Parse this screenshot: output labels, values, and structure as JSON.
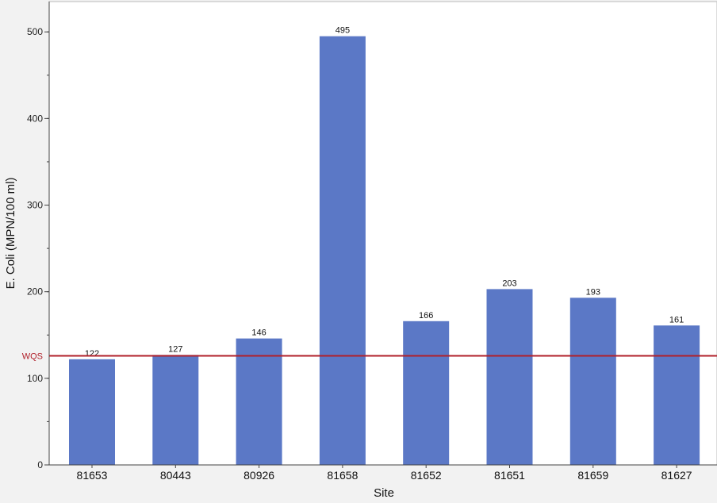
{
  "colors": {
    "bar": "#5B78C6",
    "reference_line": "#B0202A",
    "axis": "#444444",
    "plot_background": "#FFFFFF",
    "page_background": "#F2F2F2"
  },
  "chart_data": {
    "type": "bar",
    "title": "",
    "xlabel": "Site",
    "ylabel": "E. Coli (MPN/100 ml)",
    "categories": [
      "81653",
      "80443",
      "80926",
      "81658",
      "81652",
      "81651",
      "81659",
      "81627"
    ],
    "values": [
      122,
      127,
      146,
      495,
      166,
      203,
      193,
      161
    ],
    "data_labels": [
      "122",
      "127",
      "146",
      "495",
      "166",
      "203",
      "193",
      "161"
    ],
    "ylim": [
      0,
      535
    ],
    "y_ticks": [
      0,
      100,
      200,
      300,
      400,
      500
    ],
    "y_tick_labels": [
      "0",
      "100",
      "200",
      "300",
      "400",
      "500"
    ],
    "y_minor_step": 50,
    "grid": false,
    "legend": "none",
    "reference_line": {
      "label": "WQS",
      "value": 126
    }
  }
}
